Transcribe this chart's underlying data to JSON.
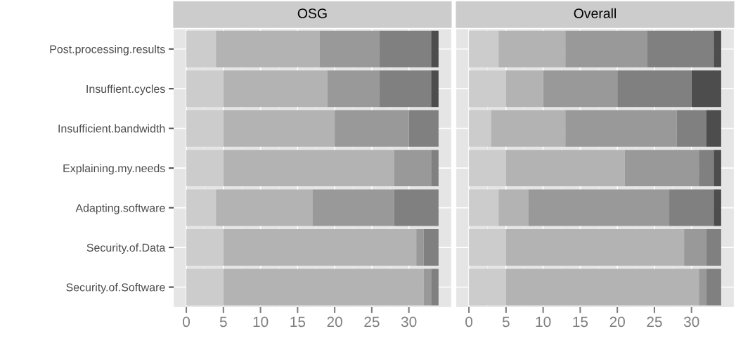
{
  "chart_data": [
    {
      "type": "bar",
      "title": "OSG",
      "orientation": "horizontal",
      "stacked": true,
      "grid": true,
      "xlim": [
        -1.7,
        35.7
      ],
      "xticks": [
        0,
        5,
        10,
        15,
        20,
        25,
        30
      ],
      "categories": [
        "Post.processing.results",
        "Insuffient.cycles",
        "Insufficient.bandwidth",
        "Explaining.my.needs",
        "Adapting.software",
        "Security.of.Data",
        "Security.of.Software"
      ],
      "series": [
        {
          "color": "#cccccc",
          "values": [
            4,
            5,
            5,
            5,
            4,
            5,
            5
          ]
        },
        {
          "color": "#b3b3b3",
          "values": [
            14,
            14,
            15,
            23,
            13,
            26,
            27
          ]
        },
        {
          "color": "#999999",
          "values": [
            8,
            7,
            10,
            5,
            11,
            1,
            1
          ]
        },
        {
          "color": "#808080",
          "values": [
            7,
            7,
            4,
            1,
            6,
            2,
            1
          ]
        },
        {
          "color": "#4d4d4d",
          "values": [
            1,
            1,
            0,
            0,
            0,
            0,
            0
          ]
        }
      ]
    },
    {
      "type": "bar",
      "title": "Overall",
      "orientation": "horizontal",
      "stacked": true,
      "grid": true,
      "tick_labels": "x",
      "xlim": [
        -1.7,
        35.7
      ],
      "xticks": [
        0,
        5,
        10,
        15,
        20,
        25,
        30
      ],
      "categories": [
        null,
        null,
        null,
        null,
        null,
        null,
        null
      ],
      "series": [
        {
          "color": "#cccccc",
          "values": [
            4,
            5,
            3,
            5,
            4,
            5,
            5
          ]
        },
        {
          "color": "#b3b3b3",
          "values": [
            9,
            5,
            10,
            16,
            4,
            24,
            26
          ]
        },
        {
          "color": "#999999",
          "values": [
            11,
            10,
            15,
            10,
            19,
            3,
            1
          ]
        },
        {
          "color": "#808080",
          "values": [
            9,
            10,
            4,
            2,
            6,
            2,
            2
          ]
        },
        {
          "color": "#4d4d4d",
          "values": [
            1,
            4,
            2,
            1,
            1,
            0,
            0
          ]
        }
      ]
    }
  ]
}
